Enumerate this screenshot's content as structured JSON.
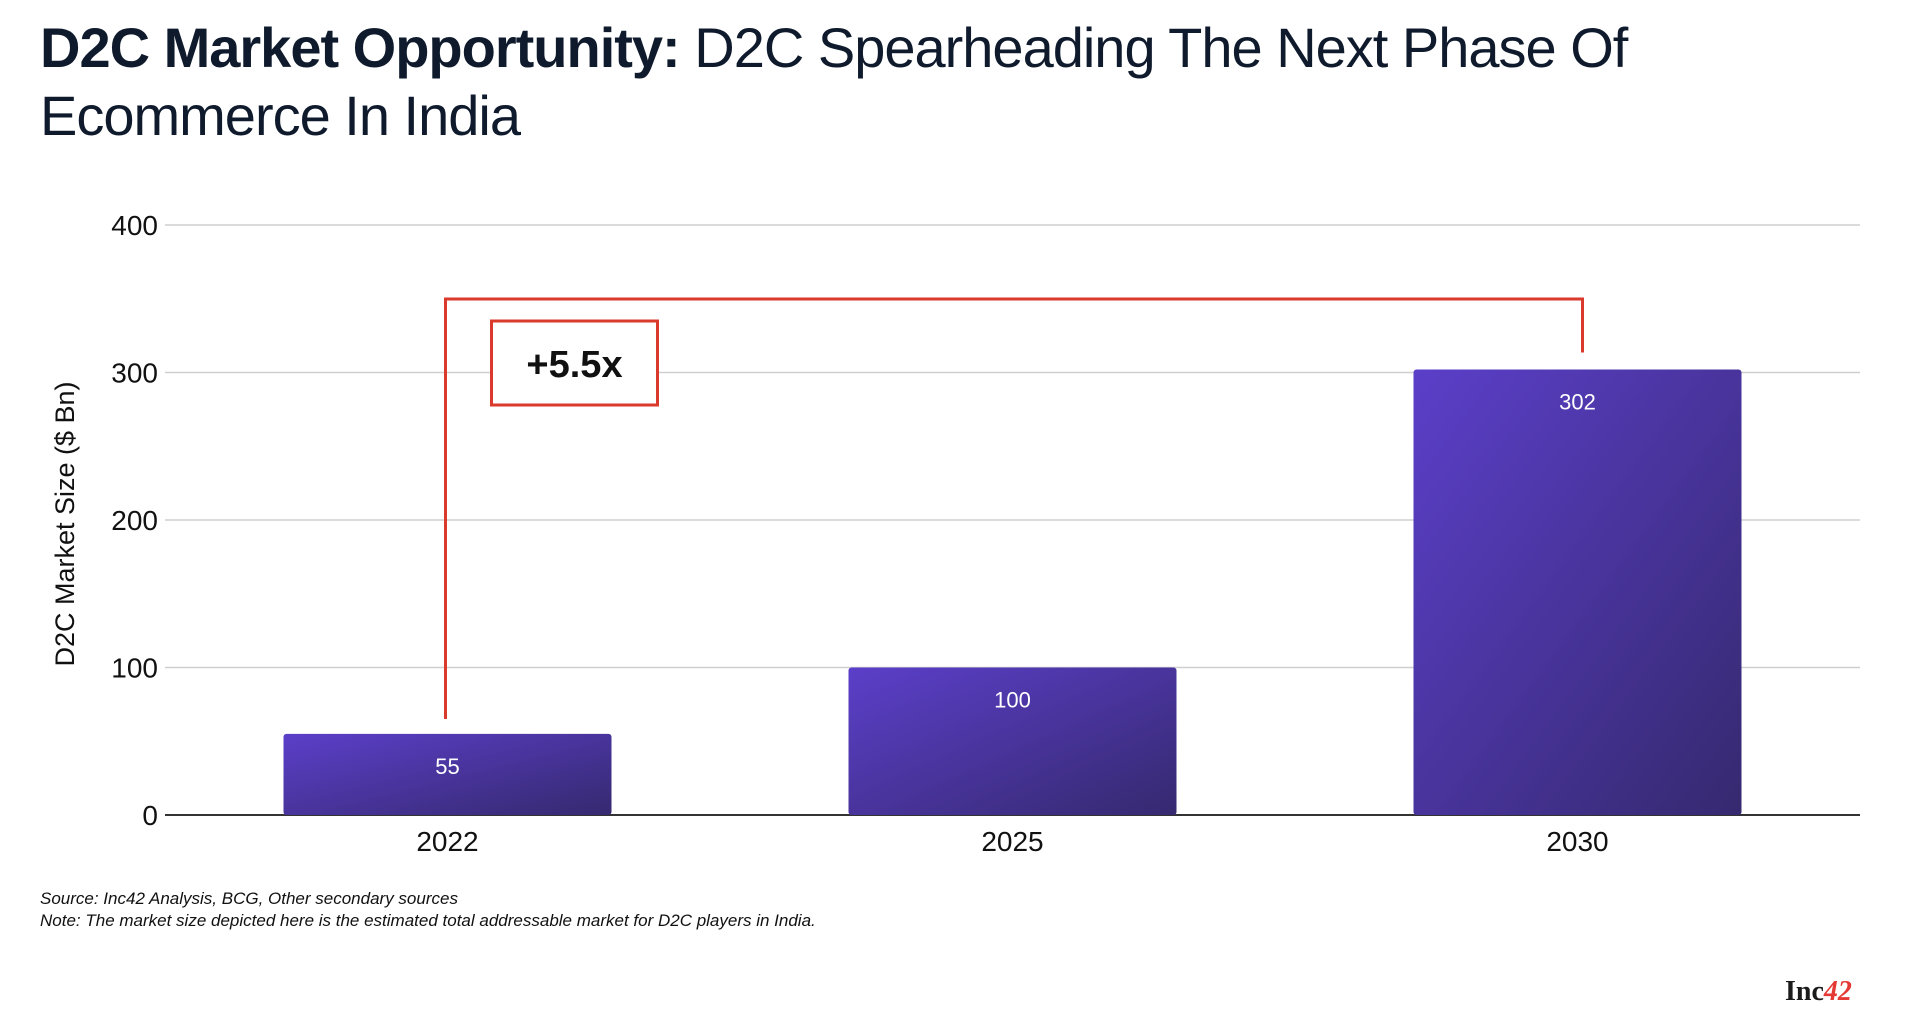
{
  "title": {
    "bold": "D2C Market Opportunity:",
    "rest": "D2C Spearheading The Next Phase Of Ecommerce In India"
  },
  "chart_data": {
    "type": "bar",
    "categories": [
      "2022",
      "2025",
      "2030"
    ],
    "values": [
      55,
      100,
      302
    ],
    "data_labels": [
      "55",
      "100",
      "302"
    ],
    "ylabel": "D2C Market Size ($ Bn)",
    "xlabel": "",
    "ylim": [
      0,
      400
    ],
    "yticks": [
      0,
      100,
      200,
      300,
      400
    ],
    "grid": true,
    "bar_color_start": "#5b3fc9",
    "bar_color_end": "#36296f",
    "annotation": {
      "text": "+5.5x",
      "from_category": "2022",
      "to_category": "2030",
      "color": "#d93a2b"
    }
  },
  "footnotes": {
    "source": "Source: Inc42 Analysis, BCG, Other secondary sources",
    "note": "Note: The market size depicted here is the estimated total addressable market for D2C players in India."
  },
  "logo": {
    "main": "Inc",
    "accent": "42"
  }
}
